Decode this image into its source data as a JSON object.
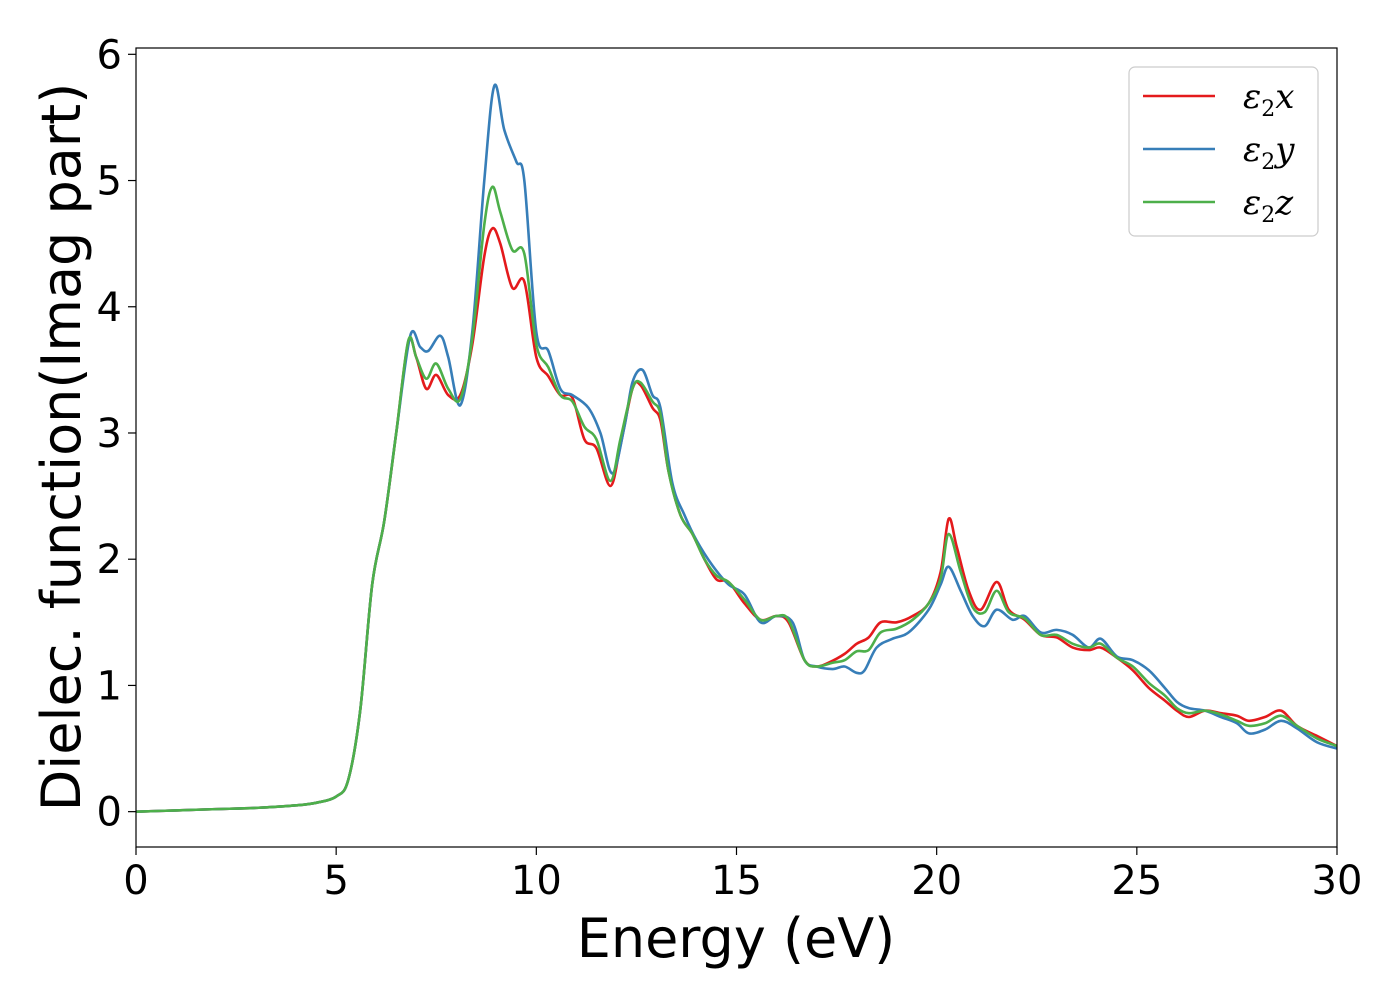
{
  "chart_data": {
    "type": "line",
    "title": "",
    "xlabel": "Energy (eV)",
    "ylabel": "Dielec. function(Imag part)",
    "xlim": [
      0,
      30
    ],
    "ylim": [
      -0.28,
      6.05
    ],
    "x_ticks": [
      0,
      5,
      10,
      15,
      20,
      25,
      30
    ],
    "y_ticks": [
      0,
      1,
      2,
      3,
      4,
      5,
      6
    ],
    "grid": false,
    "legend_position": "top-right",
    "series": [
      {
        "name": "ε₂x",
        "legend_symbol": "ε",
        "legend_sub": "2",
        "legend_suffix": "x",
        "color": "#e41a1c",
        "points": [
          [
            0,
            0.0
          ],
          [
            1,
            0.01
          ],
          [
            2,
            0.02
          ],
          [
            3,
            0.03
          ],
          [
            4,
            0.05
          ],
          [
            4.5,
            0.07
          ],
          [
            5,
            0.12
          ],
          [
            5.3,
            0.25
          ],
          [
            5.6,
            0.8
          ],
          [
            5.9,
            1.8
          ],
          [
            6.2,
            2.3
          ],
          [
            6.5,
            3.0
          ],
          [
            6.8,
            3.72
          ],
          [
            7.0,
            3.6
          ],
          [
            7.25,
            3.35
          ],
          [
            7.5,
            3.46
          ],
          [
            7.8,
            3.3
          ],
          [
            8.1,
            3.3
          ],
          [
            8.4,
            3.7
          ],
          [
            8.7,
            4.4
          ],
          [
            8.9,
            4.62
          ],
          [
            9.1,
            4.5
          ],
          [
            9.4,
            4.15
          ],
          [
            9.7,
            4.2
          ],
          [
            10.0,
            3.6
          ],
          [
            10.3,
            3.45
          ],
          [
            10.6,
            3.3
          ],
          [
            10.9,
            3.28
          ],
          [
            11.2,
            2.95
          ],
          [
            11.5,
            2.88
          ],
          [
            11.85,
            2.58
          ],
          [
            12.1,
            2.9
          ],
          [
            12.4,
            3.35
          ],
          [
            12.6,
            3.38
          ],
          [
            12.9,
            3.2
          ],
          [
            13.1,
            3.1
          ],
          [
            13.3,
            2.7
          ],
          [
            13.6,
            2.35
          ],
          [
            13.9,
            2.2
          ],
          [
            14.2,
            2.0
          ],
          [
            14.5,
            1.84
          ],
          [
            14.8,
            1.82
          ],
          [
            15.2,
            1.65
          ],
          [
            15.6,
            1.52
          ],
          [
            16.0,
            1.55
          ],
          [
            16.3,
            1.5
          ],
          [
            16.7,
            1.2
          ],
          [
            17.0,
            1.15
          ],
          [
            17.3,
            1.18
          ],
          [
            17.7,
            1.25
          ],
          [
            18.0,
            1.33
          ],
          [
            18.3,
            1.38
          ],
          [
            18.6,
            1.5
          ],
          [
            19.0,
            1.5
          ],
          [
            19.4,
            1.55
          ],
          [
            19.8,
            1.65
          ],
          [
            20.1,
            1.9
          ],
          [
            20.3,
            2.32
          ],
          [
            20.5,
            2.1
          ],
          [
            20.8,
            1.75
          ],
          [
            21.1,
            1.6
          ],
          [
            21.5,
            1.82
          ],
          [
            21.8,
            1.6
          ],
          [
            22.2,
            1.52
          ],
          [
            22.6,
            1.4
          ],
          [
            23.0,
            1.38
          ],
          [
            23.4,
            1.3
          ],
          [
            23.8,
            1.28
          ],
          [
            24.1,
            1.3
          ],
          [
            24.5,
            1.22
          ],
          [
            24.9,
            1.12
          ],
          [
            25.3,
            0.98
          ],
          [
            25.7,
            0.88
          ],
          [
            26.0,
            0.8
          ],
          [
            26.3,
            0.75
          ],
          [
            26.7,
            0.8
          ],
          [
            27.1,
            0.78
          ],
          [
            27.5,
            0.76
          ],
          [
            27.8,
            0.72
          ],
          [
            28.2,
            0.75
          ],
          [
            28.6,
            0.8
          ],
          [
            29.0,
            0.68
          ],
          [
            29.5,
            0.6
          ],
          [
            30,
            0.52
          ]
        ]
      },
      {
        "name": "ε₂y",
        "legend_symbol": "ε",
        "legend_sub": "2",
        "legend_suffix": "y",
        "color": "#377eb8",
        "points": [
          [
            0,
            0.0
          ],
          [
            1,
            0.01
          ],
          [
            2,
            0.02
          ],
          [
            3,
            0.03
          ],
          [
            4,
            0.05
          ],
          [
            4.5,
            0.07
          ],
          [
            5,
            0.12
          ],
          [
            5.3,
            0.25
          ],
          [
            5.6,
            0.8
          ],
          [
            5.9,
            1.8
          ],
          [
            6.2,
            2.3
          ],
          [
            6.5,
            3.0
          ],
          [
            6.85,
            3.77
          ],
          [
            7.1,
            3.68
          ],
          [
            7.3,
            3.65
          ],
          [
            7.6,
            3.77
          ],
          [
            7.8,
            3.6
          ],
          [
            8.1,
            3.22
          ],
          [
            8.4,
            3.8
          ],
          [
            8.7,
            5.0
          ],
          [
            8.95,
            5.75
          ],
          [
            9.2,
            5.4
          ],
          [
            9.5,
            5.15
          ],
          [
            9.7,
            5.0
          ],
          [
            10.0,
            3.8
          ],
          [
            10.3,
            3.65
          ],
          [
            10.6,
            3.35
          ],
          [
            10.9,
            3.3
          ],
          [
            11.3,
            3.2
          ],
          [
            11.6,
            3.0
          ],
          [
            11.9,
            2.68
          ],
          [
            12.2,
            3.05
          ],
          [
            12.4,
            3.4
          ],
          [
            12.65,
            3.5
          ],
          [
            12.9,
            3.3
          ],
          [
            13.1,
            3.2
          ],
          [
            13.4,
            2.6
          ],
          [
            13.7,
            2.35
          ],
          [
            14.0,
            2.15
          ],
          [
            14.4,
            1.95
          ],
          [
            14.8,
            1.8
          ],
          [
            15.2,
            1.72
          ],
          [
            15.6,
            1.5
          ],
          [
            16.0,
            1.55
          ],
          [
            16.4,
            1.5
          ],
          [
            16.7,
            1.2
          ],
          [
            17.0,
            1.15
          ],
          [
            17.4,
            1.13
          ],
          [
            17.7,
            1.15
          ],
          [
            18.0,
            1.1
          ],
          [
            18.2,
            1.12
          ],
          [
            18.5,
            1.3
          ],
          [
            18.9,
            1.37
          ],
          [
            19.3,
            1.42
          ],
          [
            19.8,
            1.6
          ],
          [
            20.1,
            1.8
          ],
          [
            20.3,
            1.94
          ],
          [
            20.6,
            1.75
          ],
          [
            20.9,
            1.55
          ],
          [
            21.2,
            1.47
          ],
          [
            21.5,
            1.6
          ],
          [
            21.9,
            1.52
          ],
          [
            22.2,
            1.55
          ],
          [
            22.6,
            1.42
          ],
          [
            23.0,
            1.44
          ],
          [
            23.4,
            1.4
          ],
          [
            23.8,
            1.3
          ],
          [
            24.1,
            1.37
          ],
          [
            24.5,
            1.23
          ],
          [
            24.9,
            1.2
          ],
          [
            25.3,
            1.12
          ],
          [
            25.7,
            0.98
          ],
          [
            26.0,
            0.87
          ],
          [
            26.3,
            0.82
          ],
          [
            26.7,
            0.8
          ],
          [
            27.1,
            0.75
          ],
          [
            27.5,
            0.7
          ],
          [
            27.8,
            0.62
          ],
          [
            28.2,
            0.65
          ],
          [
            28.6,
            0.72
          ],
          [
            29.0,
            0.66
          ],
          [
            29.5,
            0.55
          ],
          [
            30,
            0.5
          ]
        ]
      },
      {
        "name": "ε₂z",
        "legend_symbol": "ε",
        "legend_sub": "2",
        "legend_suffix": "z",
        "color": "#4daf4a",
        "points": [
          [
            0,
            0.0
          ],
          [
            1,
            0.01
          ],
          [
            2,
            0.02
          ],
          [
            3,
            0.03
          ],
          [
            4,
            0.05
          ],
          [
            4.5,
            0.07
          ],
          [
            5,
            0.12
          ],
          [
            5.3,
            0.25
          ],
          [
            5.6,
            0.8
          ],
          [
            5.9,
            1.8
          ],
          [
            6.2,
            2.3
          ],
          [
            6.5,
            3.0
          ],
          [
            6.8,
            3.73
          ],
          [
            7.0,
            3.6
          ],
          [
            7.25,
            3.43
          ],
          [
            7.5,
            3.55
          ],
          [
            7.8,
            3.35
          ],
          [
            8.1,
            3.27
          ],
          [
            8.4,
            3.75
          ],
          [
            8.7,
            4.65
          ],
          [
            8.9,
            4.95
          ],
          [
            9.1,
            4.75
          ],
          [
            9.4,
            4.45
          ],
          [
            9.7,
            4.42
          ],
          [
            10.0,
            3.7
          ],
          [
            10.3,
            3.52
          ],
          [
            10.6,
            3.3
          ],
          [
            10.9,
            3.25
          ],
          [
            11.2,
            3.05
          ],
          [
            11.5,
            2.95
          ],
          [
            11.85,
            2.62
          ],
          [
            12.1,
            2.95
          ],
          [
            12.4,
            3.35
          ],
          [
            12.6,
            3.4
          ],
          [
            12.9,
            3.25
          ],
          [
            13.1,
            3.15
          ],
          [
            13.3,
            2.7
          ],
          [
            13.6,
            2.35
          ],
          [
            13.9,
            2.2
          ],
          [
            14.2,
            2.0
          ],
          [
            14.5,
            1.87
          ],
          [
            14.8,
            1.82
          ],
          [
            15.2,
            1.68
          ],
          [
            15.6,
            1.52
          ],
          [
            16.0,
            1.55
          ],
          [
            16.3,
            1.52
          ],
          [
            16.7,
            1.2
          ],
          [
            17.0,
            1.15
          ],
          [
            17.4,
            1.18
          ],
          [
            17.7,
            1.2
          ],
          [
            18.0,
            1.27
          ],
          [
            18.3,
            1.28
          ],
          [
            18.6,
            1.42
          ],
          [
            19.0,
            1.45
          ],
          [
            19.4,
            1.52
          ],
          [
            19.8,
            1.65
          ],
          [
            20.1,
            1.85
          ],
          [
            20.3,
            2.2
          ],
          [
            20.6,
            1.9
          ],
          [
            20.9,
            1.62
          ],
          [
            21.2,
            1.58
          ],
          [
            21.5,
            1.75
          ],
          [
            21.8,
            1.58
          ],
          [
            22.2,
            1.53
          ],
          [
            22.6,
            1.4
          ],
          [
            23.0,
            1.4
          ],
          [
            23.4,
            1.33
          ],
          [
            23.8,
            1.3
          ],
          [
            24.1,
            1.33
          ],
          [
            24.5,
            1.22
          ],
          [
            24.9,
            1.15
          ],
          [
            25.3,
            1.02
          ],
          [
            25.7,
            0.92
          ],
          [
            26.0,
            0.82
          ],
          [
            26.3,
            0.78
          ],
          [
            26.7,
            0.8
          ],
          [
            27.1,
            0.77
          ],
          [
            27.5,
            0.72
          ],
          [
            27.8,
            0.68
          ],
          [
            28.2,
            0.7
          ],
          [
            28.6,
            0.76
          ],
          [
            29.0,
            0.68
          ],
          [
            29.5,
            0.58
          ],
          [
            30,
            0.52
          ]
        ]
      }
    ]
  }
}
